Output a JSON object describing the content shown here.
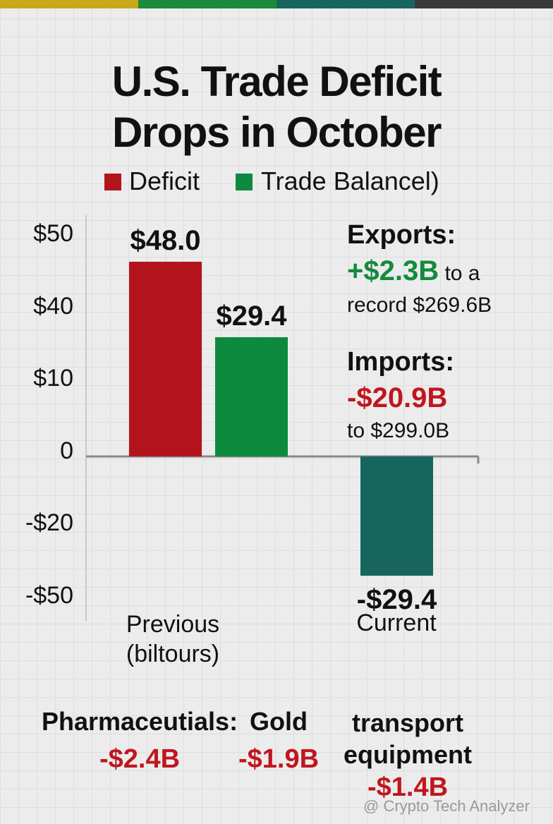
{
  "header": {
    "title": "U.S. Trade Deficit Drops in October"
  },
  "chart_data": {
    "type": "bar",
    "y_axis_labels": [
      "$50",
      "$40",
      "$10",
      "0",
      "-$20",
      "-$50"
    ],
    "categories": [
      "Previous (biltours)",
      "Current"
    ],
    "series": [
      {
        "name": "Deficit",
        "color": "#b3141c",
        "values": [
          48.0,
          null
        ],
        "value_labels": [
          "$48.0",
          null
        ]
      },
      {
        "name": "Trade Balancel)",
        "color": "#0d8a3e",
        "point_colors": [
          "#0d8a3e",
          "#17655f"
        ],
        "values": [
          29.4,
          -29.4
        ],
        "value_labels": [
          "$29.4",
          "-$29.4"
        ]
      }
    ]
  },
  "exports": {
    "heading": "Exports:",
    "change": "+$2.3B",
    "text1": "to a",
    "text2": "record $269.6B"
  },
  "imports": {
    "heading": "Imports:",
    "change": "-$20.9B",
    "text": "to $299.0B"
  },
  "items": [
    {
      "label": "Pharmaceutials:",
      "value": "-$2.4B"
    },
    {
      "label": "Gold",
      "value": "-$1.9B"
    },
    {
      "label": "transport equipment",
      "value": "-$1.4B"
    }
  ],
  "watermark": "@ Crypto Tech Analyzer"
}
